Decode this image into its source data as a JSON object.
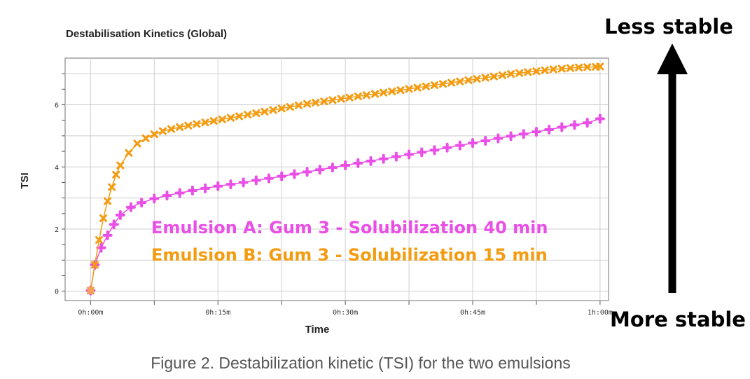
{
  "chart_data": {
    "type": "line",
    "title": "Destabilisation Kinetics (Global)",
    "xlabel": "Time",
    "ylabel": "TSI",
    "x_unit": "minutes",
    "xlim": [
      -3,
      61
    ],
    "ylim": [
      -0.3,
      7.5
    ],
    "x_ticks": [
      {
        "value": 0,
        "label": "0h:00m"
      },
      {
        "value": 15,
        "label": "0h:15m"
      },
      {
        "value": 30,
        "label": "0h:30m"
      },
      {
        "value": 45,
        "label": "0h:45m"
      },
      {
        "value": 60,
        "label": "1h:00m"
      }
    ],
    "y_ticks": [
      {
        "value": 0,
        "label": "0"
      },
      {
        "value": 2,
        "label": "2"
      },
      {
        "value": 4,
        "label": "4"
      },
      {
        "value": 6,
        "label": "6"
      }
    ],
    "grid": true,
    "series": [
      {
        "name": "Emulsion A: Gum 3 - Solubilization 40 min",
        "color": "#e94fe6",
        "marker": "plus",
        "points": [
          [
            0,
            0.02
          ],
          [
            0.5,
            0.85
          ],
          [
            1.25,
            1.4
          ],
          [
            2,
            1.8
          ],
          [
            2.75,
            2.15
          ],
          [
            3.5,
            2.45
          ],
          [
            4.75,
            2.7
          ],
          [
            6,
            2.85
          ],
          [
            7.5,
            2.98
          ],
          [
            9,
            3.08
          ],
          [
            10.5,
            3.16
          ],
          [
            12,
            3.24
          ],
          [
            13.5,
            3.31
          ],
          [
            15,
            3.38
          ],
          [
            16.5,
            3.44
          ],
          [
            18,
            3.5
          ],
          [
            19.5,
            3.57
          ],
          [
            21,
            3.63
          ],
          [
            22.5,
            3.7
          ],
          [
            24,
            3.77
          ],
          [
            25.5,
            3.84
          ],
          [
            27,
            3.91
          ],
          [
            28.5,
            3.98
          ],
          [
            30,
            4.05
          ],
          [
            31.5,
            4.12
          ],
          [
            33,
            4.19
          ],
          [
            34.5,
            4.26
          ],
          [
            36,
            4.33
          ],
          [
            37.5,
            4.4
          ],
          [
            39,
            4.47
          ],
          [
            40.5,
            4.54
          ],
          [
            42,
            4.62
          ],
          [
            43.5,
            4.69
          ],
          [
            45,
            4.77
          ],
          [
            46.5,
            4.84
          ],
          [
            48,
            4.92
          ],
          [
            49.5,
            4.99
          ],
          [
            51,
            5.06
          ],
          [
            52.5,
            5.13
          ],
          [
            54,
            5.2
          ],
          [
            55.5,
            5.28
          ],
          [
            57,
            5.35
          ],
          [
            58.5,
            5.42
          ],
          [
            60,
            5.55
          ]
        ]
      },
      {
        "name": "Emulsion B: Gum 3 - Solubilization 15 min",
        "color": "#f39c12",
        "marker": "cross",
        "points": [
          [
            0,
            0.02
          ],
          [
            0.5,
            0.85
          ],
          [
            1,
            1.65
          ],
          [
            1.5,
            2.35
          ],
          [
            2,
            2.9
          ],
          [
            2.5,
            3.35
          ],
          [
            3,
            3.75
          ],
          [
            3.5,
            4.05
          ],
          [
            4.5,
            4.45
          ],
          [
            5.5,
            4.75
          ],
          [
            6.5,
            4.92
          ],
          [
            7.5,
            5.05
          ],
          [
            8.5,
            5.15
          ],
          [
            9.5,
            5.22
          ],
          [
            10.5,
            5.28
          ],
          [
            11.5,
            5.33
          ],
          [
            12.5,
            5.38
          ],
          [
            13.5,
            5.43
          ],
          [
            14.5,
            5.48
          ],
          [
            15.5,
            5.53
          ],
          [
            16.5,
            5.58
          ],
          [
            17.5,
            5.63
          ],
          [
            18.5,
            5.68
          ],
          [
            19.5,
            5.73
          ],
          [
            20.5,
            5.78
          ],
          [
            21.5,
            5.83
          ],
          [
            22.5,
            5.88
          ],
          [
            23.5,
            5.93
          ],
          [
            24.5,
            5.98
          ],
          [
            25.5,
            6.03
          ],
          [
            26.5,
            6.07
          ],
          [
            27.5,
            6.11
          ],
          [
            28.5,
            6.15
          ],
          [
            29.5,
            6.19
          ],
          [
            30.5,
            6.23
          ],
          [
            31.5,
            6.27
          ],
          [
            32.5,
            6.31
          ],
          [
            33.5,
            6.35
          ],
          [
            34.5,
            6.39
          ],
          [
            35.5,
            6.43
          ],
          [
            36.5,
            6.47
          ],
          [
            37.5,
            6.51
          ],
          [
            38.5,
            6.55
          ],
          [
            39.5,
            6.59
          ],
          [
            40.5,
            6.63
          ],
          [
            41.5,
            6.67
          ],
          [
            42.5,
            6.71
          ],
          [
            43.5,
            6.75
          ],
          [
            44.5,
            6.79
          ],
          [
            45.5,
            6.83
          ],
          [
            46.5,
            6.87
          ],
          [
            47.5,
            6.91
          ],
          [
            48.5,
            6.95
          ],
          [
            49.5,
            6.99
          ],
          [
            50.5,
            7.02
          ],
          [
            51.5,
            7.05
          ],
          [
            52.5,
            7.08
          ],
          [
            53.5,
            7.11
          ],
          [
            54.5,
            7.14
          ],
          [
            55.5,
            7.16
          ],
          [
            56.5,
            7.18
          ],
          [
            57.5,
            7.2
          ],
          [
            58.5,
            7.21
          ],
          [
            59.5,
            7.22
          ],
          [
            60,
            7.23
          ]
        ]
      }
    ],
    "annotations": {
      "less_stable": "Less stable",
      "more_stable": "More stable"
    },
    "caption": "Figure 2. Destabilization kinetic (TSI) for the two emulsions"
  }
}
